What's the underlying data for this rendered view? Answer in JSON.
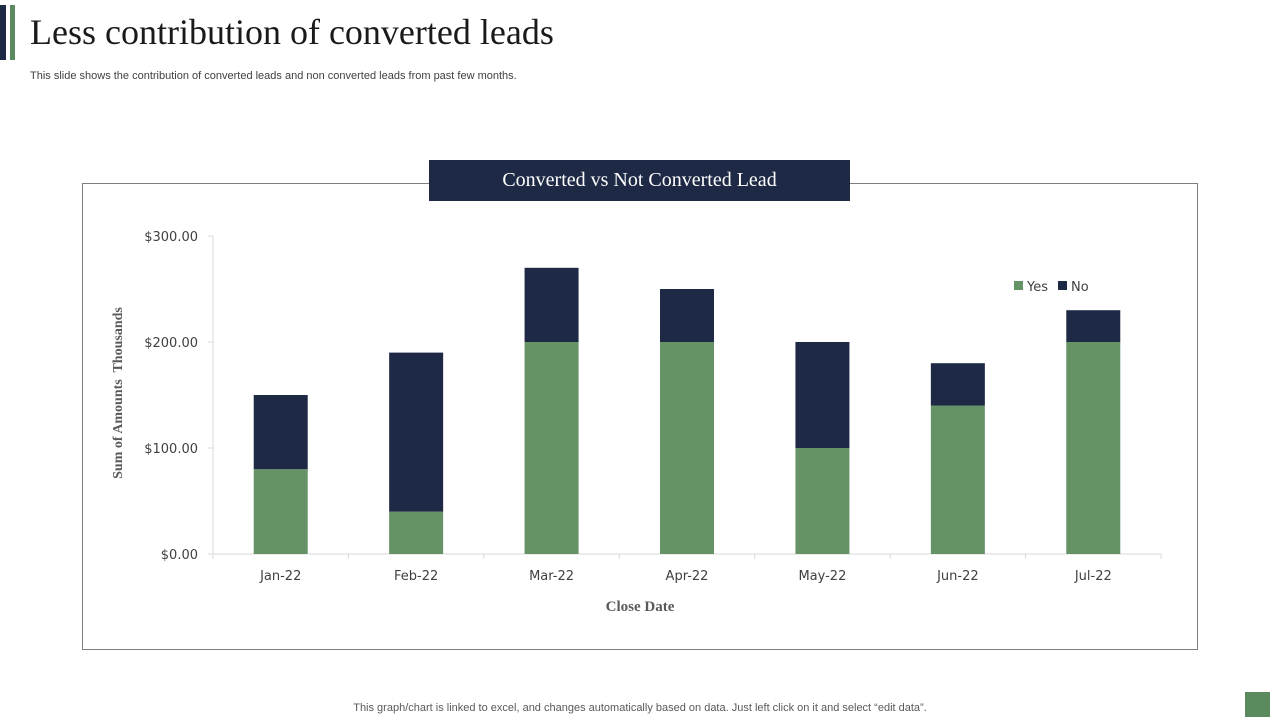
{
  "slide": {
    "title": "Less contribution of converted leads",
    "subtitle": "This slide shows the contribution of converted leads and non converted leads from past few months.",
    "footer": "This graph/chart is linked to excel,  and changes automatically based on data. Just left click on it and select “edit data”."
  },
  "colors": {
    "yes": "#659366",
    "no": "#1e2a45",
    "accent_dark": "#1e2a45",
    "accent_green": "#5b8a5e"
  },
  "chart_data": {
    "type": "bar",
    "stacked": true,
    "title": "Converted vs Not Converted Lead",
    "xlabel": "Close Date",
    "ylabel": "Sum of Amounts  Thousands",
    "categories": [
      "Jan-22",
      "Feb-22",
      "Mar-22",
      "Apr-22",
      "May-22",
      "Jun-22",
      "Jul-22"
    ],
    "series": [
      {
        "name": "Yes",
        "color": "#659366",
        "values": [
          80,
          40,
          200,
          200,
          100,
          140,
          200
        ]
      },
      {
        "name": "No",
        "color": "#1e2a45",
        "values": [
          70,
          150,
          70,
          50,
          100,
          40,
          30
        ]
      }
    ],
    "ylim": [
      0,
      300
    ],
    "yticks": [
      0,
      100,
      200,
      300
    ],
    "ytick_labels": [
      "$0.00",
      "$100.00",
      "$200.00",
      "$300.00"
    ],
    "legend": "top-right",
    "grid": false
  }
}
